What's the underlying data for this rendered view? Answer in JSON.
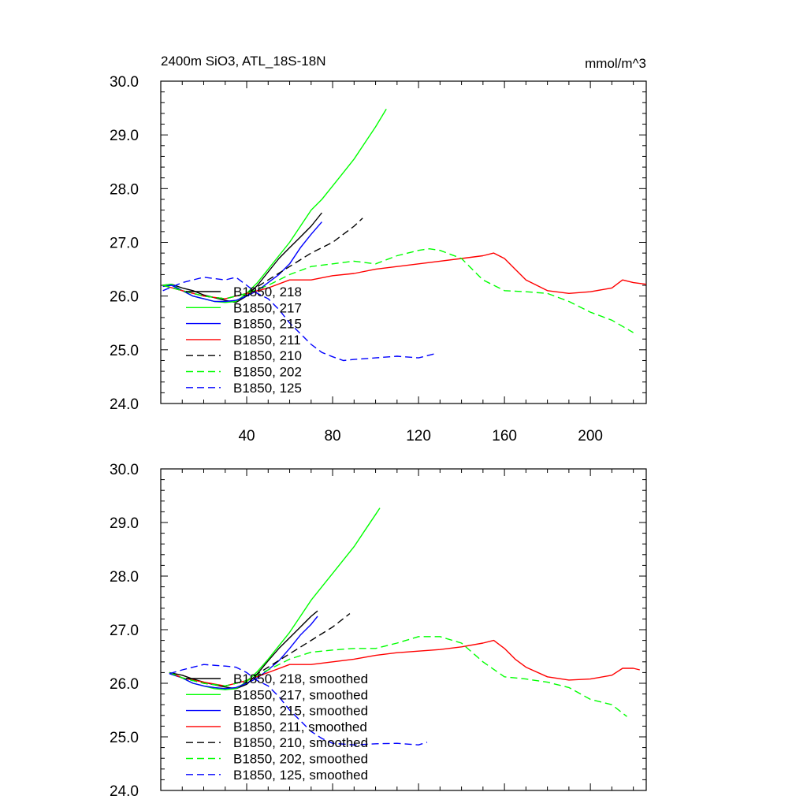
{
  "chart_data": [
    {
      "type": "line",
      "title": "2400m SiO3, ATL_18S-18N",
      "units": "mmol/m^3",
      "xlim": [
        0,
        226
      ],
      "ylim": [
        24.0,
        30.0
      ],
      "xticks": [
        40,
        80,
        120,
        160,
        200
      ],
      "xtick_labels": [
        "40",
        "80",
        "120",
        "160",
        "200"
      ],
      "yticks": [
        24.0,
        25.0,
        26.0,
        27.0,
        28.0,
        29.0,
        30.0
      ],
      "ytick_labels": [
        "24.0",
        "25.0",
        "26.0",
        "27.0",
        "28.0",
        "29.0",
        "30.0"
      ],
      "legend_position": "lower-left",
      "series": [
        {
          "name": "B1850, 218",
          "color": "#000000",
          "dash": "solid",
          "x": [
            1,
            5,
            10,
            15,
            20,
            25,
            30,
            35,
            40,
            45,
            50,
            55,
            60,
            65,
            70,
            75
          ],
          "y": [
            26.2,
            26.22,
            26.15,
            26.1,
            26.02,
            25.97,
            25.92,
            25.88,
            26.0,
            26.2,
            26.45,
            26.7,
            26.9,
            27.1,
            27.3,
            27.55
          ]
        },
        {
          "name": "B1850, 217",
          "color": "#00ff00",
          "dash": "solid",
          "x": [
            1,
            5,
            10,
            15,
            20,
            25,
            30,
            35,
            40,
            45,
            50,
            55,
            60,
            65,
            70,
            75,
            80,
            85,
            90,
            95,
            100,
            105
          ],
          "y": [
            26.2,
            26.22,
            26.1,
            26.0,
            25.95,
            25.9,
            25.88,
            25.9,
            26.05,
            26.25,
            26.5,
            26.75,
            27.0,
            27.3,
            27.6,
            27.8,
            28.05,
            28.3,
            28.55,
            28.85,
            29.15,
            29.48
          ]
        },
        {
          "name": "B1850, 215",
          "color": "#0000ff",
          "dash": "solid",
          "x": [
            1,
            5,
            10,
            15,
            20,
            25,
            30,
            35,
            40,
            45,
            50,
            55,
            60,
            65,
            70,
            75
          ],
          "y": [
            26.18,
            26.2,
            26.1,
            26.0,
            25.95,
            25.9,
            25.9,
            25.92,
            26.0,
            26.1,
            26.25,
            26.4,
            26.6,
            26.9,
            27.15,
            27.38
          ]
        },
        {
          "name": "B1850, 211",
          "color": "#ff0000",
          "dash": "solid",
          "x": [
            1,
            10,
            20,
            30,
            40,
            50,
            60,
            70,
            80,
            90,
            100,
            110,
            120,
            130,
            140,
            150,
            155,
            160,
            165,
            170,
            180,
            190,
            200,
            210,
            215,
            220,
            226
          ],
          "y": [
            26.2,
            26.1,
            26.0,
            25.95,
            26.05,
            26.15,
            26.3,
            26.3,
            26.38,
            26.42,
            26.5,
            26.55,
            26.6,
            26.65,
            26.7,
            26.75,
            26.8,
            26.7,
            26.5,
            26.3,
            26.1,
            26.05,
            26.08,
            26.15,
            26.3,
            26.25,
            26.22
          ]
        },
        {
          "name": "B1850, 210",
          "color": "#000000",
          "dash": "dashed",
          "x": [
            1,
            10,
            20,
            30,
            40,
            50,
            60,
            70,
            80,
            90,
            94
          ],
          "y": [
            26.2,
            26.1,
            26.0,
            25.95,
            26.05,
            26.3,
            26.55,
            26.8,
            27.0,
            27.3,
            27.45
          ]
        },
        {
          "name": "B1850, 202",
          "color": "#00ff00",
          "dash": "dashed",
          "x": [
            1,
            10,
            20,
            30,
            40,
            50,
            60,
            70,
            80,
            90,
            100,
            110,
            120,
            125,
            130,
            140,
            150,
            160,
            170,
            180,
            190,
            200,
            210,
            220
          ],
          "y": [
            26.2,
            26.1,
            26.0,
            25.95,
            26.05,
            26.2,
            26.4,
            26.55,
            26.6,
            26.65,
            26.6,
            26.75,
            26.85,
            26.88,
            26.85,
            26.7,
            26.3,
            26.1,
            26.08,
            26.05,
            25.9,
            25.7,
            25.55,
            25.32
          ]
        },
        {
          "name": "B1850, 125",
          "color": "#0000ff",
          "dash": "dashed",
          "x": [
            1,
            10,
            20,
            30,
            35,
            40,
            45,
            50,
            55,
            60,
            65,
            70,
            75,
            80,
            85,
            90,
            100,
            110,
            120,
            128
          ],
          "y": [
            26.1,
            26.25,
            26.35,
            26.3,
            26.35,
            26.2,
            26.05,
            25.95,
            25.75,
            25.5,
            25.3,
            25.1,
            24.95,
            24.87,
            24.8,
            24.82,
            24.85,
            24.88,
            24.85,
            24.93
          ]
        }
      ]
    },
    {
      "type": "line",
      "xlim": [
        0,
        226
      ],
      "ylim": [
        24.0,
        30.0
      ],
      "yticks": [
        24.0,
        25.0,
        26.0,
        27.0,
        28.0,
        29.0,
        30.0
      ],
      "ytick_labels": [
        "24.0",
        "25.0",
        "26.0",
        "27.0",
        "28.0",
        "29.0",
        "30.0"
      ],
      "xticks": [
        40,
        80,
        120,
        160,
        200
      ],
      "legend_position": "lower-left",
      "series": [
        {
          "name": "B1850, 218, smoothed",
          "color": "#000000",
          "dash": "solid",
          "x": [
            4,
            10,
            15,
            20,
            25,
            30,
            35,
            40,
            45,
            50,
            55,
            60,
            65,
            70,
            73
          ],
          "y": [
            26.2,
            26.15,
            26.08,
            26.02,
            25.97,
            25.93,
            25.9,
            25.98,
            26.18,
            26.42,
            26.65,
            26.85,
            27.05,
            27.25,
            27.35
          ]
        },
        {
          "name": "B1850, 217, smoothed",
          "color": "#00ff00",
          "dash": "solid",
          "x": [
            4,
            10,
            15,
            20,
            25,
            30,
            35,
            40,
            45,
            50,
            55,
            60,
            65,
            70,
            75,
            80,
            85,
            90,
            95,
            100,
            102
          ],
          "y": [
            26.2,
            26.1,
            26.0,
            25.95,
            25.9,
            25.88,
            25.9,
            26.03,
            26.22,
            26.45,
            26.7,
            26.95,
            27.25,
            27.55,
            27.8,
            28.05,
            28.3,
            28.55,
            28.85,
            29.15,
            29.27
          ]
        },
        {
          "name": "B1850, 215, smoothed",
          "color": "#0000ff",
          "dash": "solid",
          "x": [
            4,
            10,
            15,
            20,
            25,
            30,
            35,
            40,
            45,
            50,
            55,
            60,
            65,
            70,
            73
          ],
          "y": [
            26.18,
            26.1,
            26.0,
            25.95,
            25.92,
            25.9,
            25.92,
            26.0,
            26.1,
            26.25,
            26.42,
            26.65,
            26.9,
            27.1,
            27.25
          ]
        },
        {
          "name": "B1850, 211, smoothed",
          "color": "#ff0000",
          "dash": "solid",
          "x": [
            4,
            10,
            20,
            30,
            40,
            50,
            60,
            70,
            80,
            90,
            100,
            110,
            120,
            130,
            140,
            150,
            155,
            160,
            165,
            170,
            180,
            190,
            200,
            210,
            215,
            220,
            223
          ],
          "y": [
            26.2,
            26.1,
            26.02,
            25.95,
            26.05,
            26.2,
            26.35,
            26.35,
            26.4,
            26.45,
            26.52,
            26.57,
            26.6,
            26.63,
            26.68,
            26.75,
            26.8,
            26.65,
            26.45,
            26.3,
            26.12,
            26.06,
            26.08,
            26.15,
            26.28,
            26.28,
            26.25
          ]
        },
        {
          "name": "B1850, 210, smoothed",
          "color": "#000000",
          "dash": "dashed",
          "x": [
            4,
            10,
            20,
            30,
            40,
            50,
            60,
            70,
            80,
            88
          ],
          "y": [
            26.2,
            26.1,
            26.0,
            25.95,
            26.05,
            26.3,
            26.55,
            26.8,
            27.05,
            27.3
          ]
        },
        {
          "name": "B1850, 202, smoothed",
          "color": "#00ff00",
          "dash": "dashed",
          "x": [
            4,
            10,
            20,
            30,
            40,
            50,
            60,
            70,
            80,
            90,
            100,
            110,
            120,
            130,
            140,
            150,
            160,
            170,
            180,
            190,
            200,
            210,
            217
          ],
          "y": [
            26.2,
            26.1,
            26.0,
            25.95,
            26.05,
            26.25,
            26.45,
            26.58,
            26.62,
            26.65,
            26.65,
            26.75,
            26.87,
            26.87,
            26.75,
            26.4,
            26.12,
            26.08,
            26.02,
            25.92,
            25.7,
            25.6,
            25.38
          ]
        },
        {
          "name": "B1850, 125, smoothed",
          "color": "#0000ff",
          "dash": "dashed",
          "x": [
            4,
            10,
            20,
            30,
            35,
            40,
            45,
            50,
            55,
            60,
            65,
            70,
            75,
            80,
            90,
            100,
            110,
            120,
            124
          ],
          "y": [
            26.18,
            26.25,
            26.35,
            26.32,
            26.3,
            26.2,
            26.05,
            25.95,
            25.75,
            25.5,
            25.3,
            25.1,
            24.97,
            24.88,
            24.85,
            24.87,
            24.88,
            24.85,
            24.9
          ]
        }
      ]
    }
  ]
}
